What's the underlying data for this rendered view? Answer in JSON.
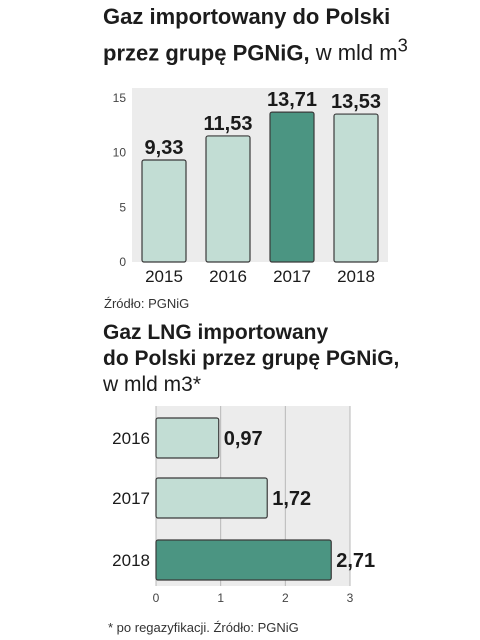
{
  "chart1": {
    "title_line1": "Gaz importowany do Polski",
    "title_line2": "przez grupę PGNiG,",
    "title_unit": "w mld m",
    "title_unit_sup": "3",
    "source": "Źródło: PGNiG",
    "colors": {
      "bar": "#c2ddd4",
      "highlight": "#4b9582",
      "outline": "#3a3a3a",
      "panel": "#ececec"
    }
  },
  "chart2": {
    "title_line1": "Gaz LNG importowany",
    "title_line2": "do Polski przez grupę PGNiG,",
    "title_unit": "w mld m3*",
    "source": "* po regazyfikacji. Źródło: PGNiG"
  },
  "chart_data": [
    {
      "type": "bar",
      "title": "Gaz importowany do Polski przez grupę PGNiG, w mld m3",
      "categories": [
        "2015",
        "2016",
        "2017",
        "2018"
      ],
      "values": [
        9.33,
        11.53,
        13.71,
        13.53
      ],
      "labels": [
        "9,33",
        "11,53",
        "13,71",
        "13,53"
      ],
      "ylim": [
        0,
        15
      ],
      "yticks": [
        0,
        5,
        10,
        15
      ],
      "ytick_labels": [
        "0",
        "5",
        "10",
        "15"
      ],
      "highlight_index": 2,
      "grid": false
    },
    {
      "type": "bar",
      "orientation": "horizontal",
      "title": "Gaz LNG importowany do Polski przez grupę PGNiG, w mld m3*",
      "categories": [
        "2016",
        "2017",
        "2018"
      ],
      "values": [
        0.97,
        1.72,
        2.71
      ],
      "labels": [
        "0,97",
        "1,72",
        "2,71"
      ],
      "xlim": [
        0,
        3
      ],
      "xticks": [
        0,
        1,
        2,
        3
      ],
      "xtick_labels": [
        "0",
        "1",
        "2",
        "3"
      ],
      "highlight_index": 2,
      "grid": true
    }
  ]
}
